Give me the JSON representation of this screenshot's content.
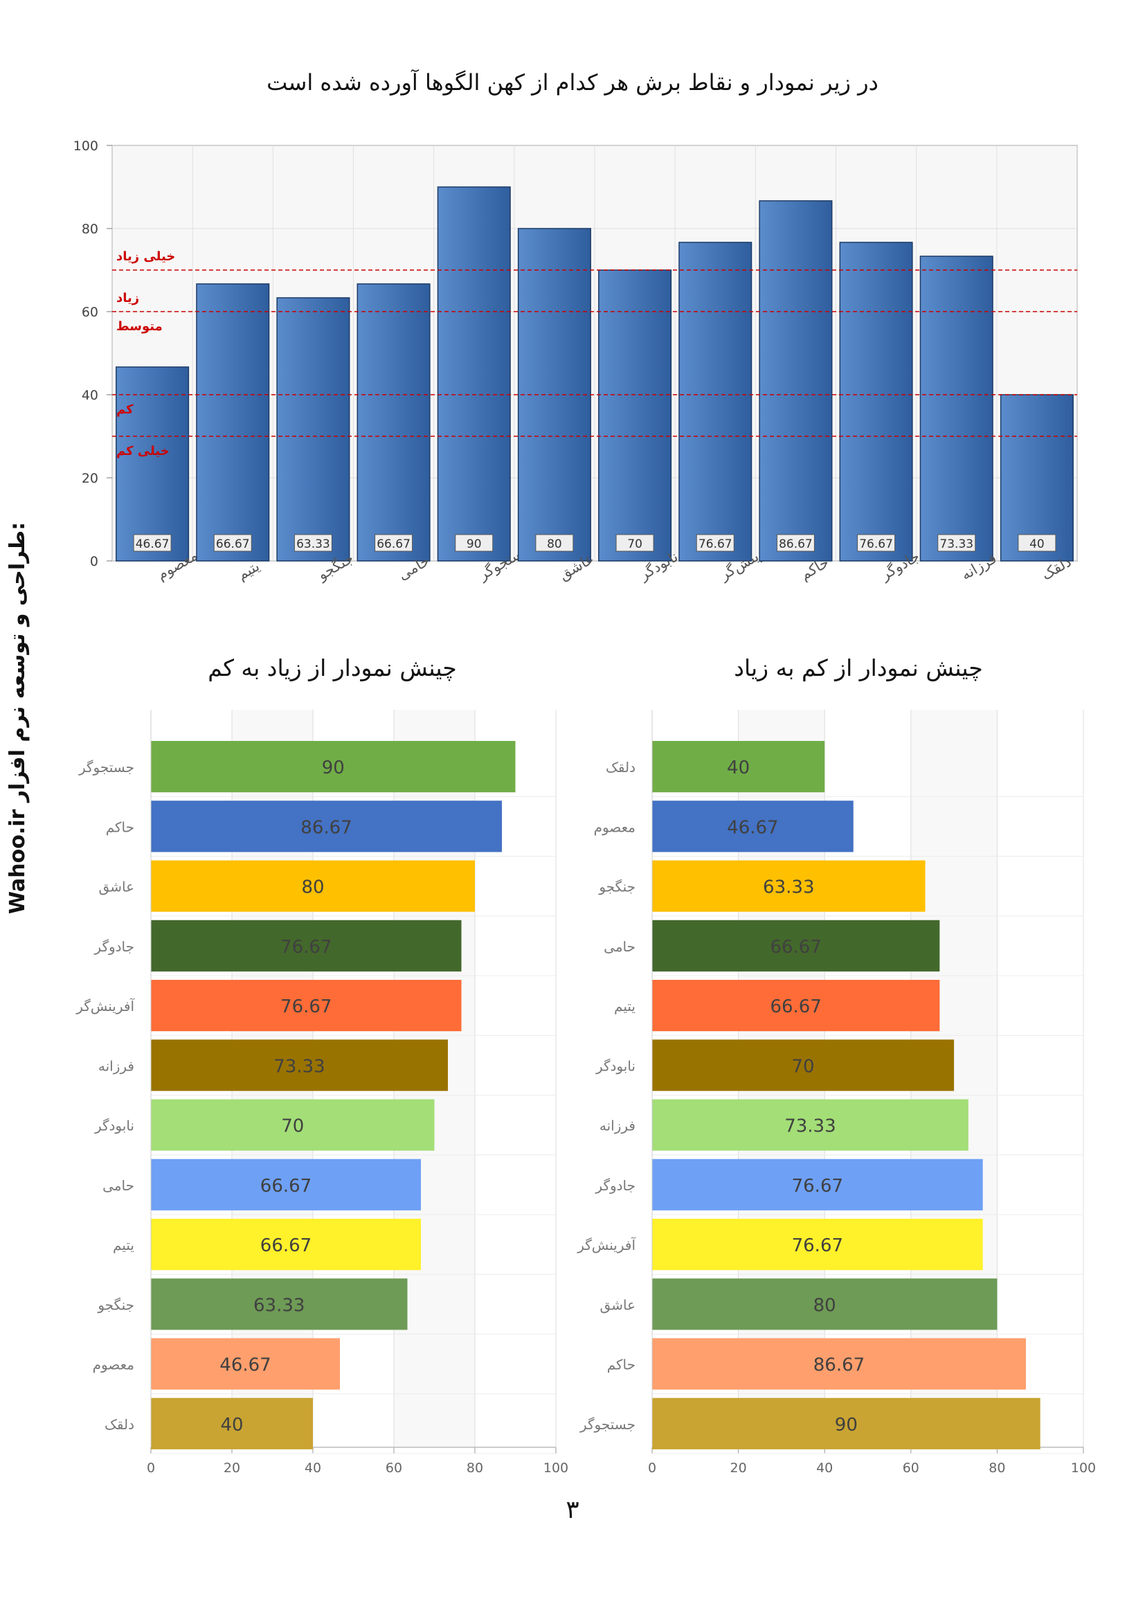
{
  "page": {
    "main_title": "در زیر نمودار و نقاط برش هر کدام از کهن الگوها آورده شده است",
    "desc_title": "چینش نمودار از زیاد به کم",
    "asc_title": "چینش نمودار از کم به زیاد",
    "side_credit": "Wahoo.ir     طراحی و توسعه نرم افزار:",
    "page_number": "۳"
  },
  "chart_data": [
    {
      "type": "bar",
      "title": "در زیر نمودار و نقاط برش هر کدام از کهن الگوها آورده شده است",
      "categories": [
        "معصوم",
        "یتیم",
        "جنگجو",
        "حامی",
        "جستجوگر",
        "عاشق",
        "نابودگر",
        "آفرینش‌گر",
        "حاکم",
        "جادوگر",
        "فرزانه",
        "دلقک"
      ],
      "values": [
        46.67,
        66.67,
        63.33,
        66.67,
        90,
        80,
        70,
        76.67,
        86.67,
        76.67,
        73.33,
        40
      ],
      "ylim": [
        0,
        100
      ],
      "yticks": [
        0,
        20,
        40,
        60,
        80,
        100
      ],
      "bar_color": "#2F5E9E",
      "cutoffs": [
        {
          "value": 70,
          "label": "خیلی زیاد",
          "label_position": "above"
        },
        {
          "value": 60,
          "label": "زیاد",
          "label_position": "above"
        },
        {
          "value": 60,
          "label": "متوسط",
          "label_position": "below"
        },
        {
          "value": 40,
          "label": "کم",
          "label_position": "below"
        },
        {
          "value": 30,
          "label": "خیلی کم",
          "label_position": "below"
        }
      ],
      "cutoff_color": "#CC0000"
    },
    {
      "type": "bar",
      "orientation": "horizontal",
      "title": "چینش نمودار از زیاد به کم",
      "categories": [
        "جستجوگر",
        "حاکم",
        "عاشق",
        "جادوگر",
        "آفرینش‌گر",
        "فرزانه",
        "نابودگر",
        "حامی",
        "یتیم",
        "جنگجو",
        "معصوم",
        "دلقک"
      ],
      "values": [
        90,
        86.67,
        80,
        76.67,
        76.67,
        73.33,
        70,
        66.67,
        66.67,
        63.33,
        46.67,
        40
      ],
      "labels": [
        "90",
        "86.67",
        "80",
        "76.67",
        "76.67",
        "73.33",
        "70",
        "66.67",
        "66.67",
        "63.33",
        "46.67",
        "40"
      ],
      "colors": [
        "#70AD47",
        "#4472C4",
        "#FFC000",
        "#43682B",
        "#FF6C37",
        "#997300",
        "#A3DE77",
        "#6EA0F5",
        "#FFF12A",
        "#6E9B56",
        "#FF9F6D",
        "#C9A432"
      ],
      "xlim": [
        0,
        100
      ],
      "xticks": [
        0,
        20,
        40,
        60,
        80,
        100
      ]
    },
    {
      "type": "bar",
      "orientation": "horizontal",
      "title": "چینش نمودار از کم به زیاد",
      "categories": [
        "دلقک",
        "معصوم",
        "جنگجو",
        "حامی",
        "یتیم",
        "نابودگر",
        "فرزانه",
        "جادوگر",
        "آفرینش‌گر",
        "عاشق",
        "حاکم",
        "جستجوگر"
      ],
      "values": [
        40,
        46.67,
        63.33,
        66.67,
        66.67,
        70,
        73.33,
        76.67,
        76.67,
        80,
        86.67,
        90
      ],
      "labels": [
        "40",
        "46.67",
        "63.33",
        "66.67",
        "66.67",
        "70",
        "73.33",
        "76.67",
        "76.67",
        "80",
        "86.67",
        "90"
      ],
      "colors": [
        "#70AD47",
        "#4472C4",
        "#FFC000",
        "#43682B",
        "#FF6C37",
        "#997300",
        "#A3DE77",
        "#6EA0F5",
        "#FFF12A",
        "#6E9B56",
        "#FF9F6D",
        "#C9A432"
      ],
      "xlim": [
        0,
        100
      ],
      "xticks": [
        0,
        20,
        40,
        60,
        80,
        100
      ]
    }
  ]
}
